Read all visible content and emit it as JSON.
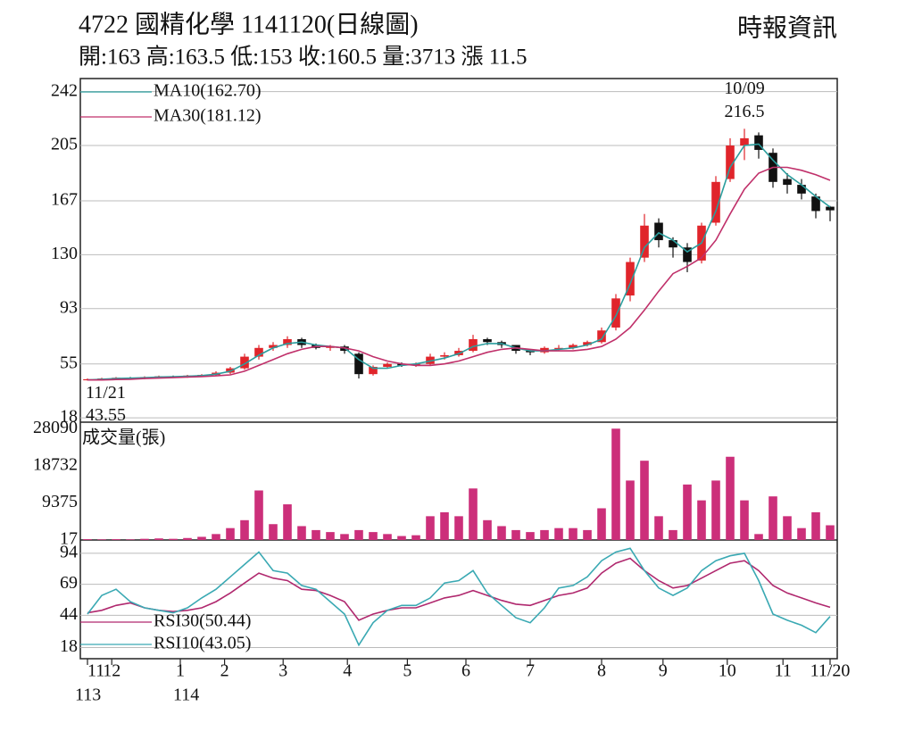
{
  "header": {
    "title": "4722  國精化學 1141120(日線圖)",
    "source": "時報資訊",
    "stats": "開:163 高:163.5 低:153 收:160.5 量:3713 漲 11.5"
  },
  "chart_data": [
    {
      "type": "candlestick",
      "x": [
        0,
        1,
        2,
        3,
        4,
        5,
        6,
        7,
        8,
        9,
        10,
        11,
        12,
        13,
        14,
        15,
        16,
        17,
        18,
        19,
        20,
        21,
        22,
        23,
        24,
        25,
        26,
        27,
        28,
        29,
        30,
        31,
        32,
        33,
        34,
        35,
        36,
        37,
        38,
        39,
        40,
        41,
        42,
        43,
        44,
        45,
        46,
        47,
        48,
        49,
        50,
        51,
        52
      ],
      "open": [
        44,
        44.5,
        45,
        45.5,
        45,
        46,
        46.5,
        46,
        47,
        47.5,
        49,
        52,
        60,
        66,
        68,
        72,
        68,
        66,
        67,
        62,
        48,
        53,
        55,
        54,
        55,
        60,
        61,
        64,
        72,
        70,
        68,
        64,
        63,
        66,
        66,
        68,
        70,
        80,
        102,
        128,
        152,
        140,
        135,
        126,
        152,
        182,
        205,
        212,
        200,
        182,
        178,
        170,
        163
      ],
      "high": [
        45,
        45.5,
        46,
        46,
        46.5,
        47,
        47,
        47.5,
        48,
        50,
        53,
        62,
        68,
        70,
        74,
        73,
        69,
        68,
        68,
        63,
        54,
        56,
        56,
        56,
        62,
        63,
        66,
        75,
        73,
        71,
        68,
        65,
        67,
        68,
        69,
        71,
        80,
        103,
        128,
        158,
        155,
        142,
        138,
        152,
        184,
        210,
        216.5,
        214,
        203,
        186,
        182,
        172,
        163.5
      ],
      "low": [
        43.55,
        44,
        44.5,
        44.5,
        44.5,
        45.5,
        45.5,
        45.5,
        46.5,
        47,
        48,
        51,
        58,
        64,
        66,
        66,
        65,
        64,
        62,
        45,
        47,
        52,
        53,
        53,
        54,
        58,
        60,
        63,
        68,
        66,
        62,
        61,
        62,
        64,
        65,
        67,
        69,
        78,
        98,
        125,
        135,
        128,
        118,
        124,
        150,
        180,
        195,
        196,
        176,
        172,
        168,
        155,
        153
      ],
      "close": [
        44.5,
        45,
        45.5,
        45,
        46,
        46.5,
        46,
        47,
        47.5,
        49,
        52,
        60,
        66,
        68,
        72,
        68,
        66,
        67,
        64,
        48,
        53,
        55,
        54,
        55,
        60,
        61,
        64,
        72,
        70,
        68,
        64,
        63,
        66,
        66,
        68,
        70,
        78,
        100,
        125,
        150,
        140,
        135,
        125,
        150,
        180,
        205,
        210,
        202,
        180,
        178,
        172,
        160,
        160.5
      ],
      "up_color": "#e0252b",
      "down_color": "#111111",
      "series": [
        {
          "name": "MA10(162.70)",
          "color": "#2a9d9d",
          "values": [
            44,
            44.5,
            45,
            45.2,
            45.5,
            46,
            46.2,
            46.5,
            47,
            48,
            50,
            55,
            61,
            66,
            69,
            70,
            68,
            67,
            66,
            58,
            52,
            52,
            54,
            55,
            57,
            59,
            62,
            67,
            69,
            69,
            66,
            64,
            64,
            65,
            66,
            68,
            72,
            88,
            110,
            135,
            145,
            140,
            132,
            138,
            160,
            190,
            205,
            206,
            195,
            185,
            178,
            170,
            162.7
          ]
        },
        {
          "name": "MA30(181.12)",
          "color": "#c0306a",
          "values": [
            44,
            44,
            44.3,
            44.5,
            45,
            45.3,
            45.6,
            46,
            46.3,
            46.8,
            47.5,
            50,
            54,
            58,
            62,
            65,
            67,
            67,
            66,
            64,
            60,
            57,
            55,
            54,
            54,
            55,
            57,
            60,
            63,
            65,
            66,
            65,
            64,
            64,
            64,
            65,
            67,
            72,
            80,
            92,
            105,
            117,
            122,
            128,
            140,
            158,
            175,
            186,
            190,
            190,
            188,
            185,
            181.12
          ]
        }
      ],
      "high_annotation": {
        "date": "10/09",
        "value": 216.5
      },
      "low_annotation": {
        "date": "11/21",
        "value": 43.55
      },
      "xlim": [
        -0.5,
        52.5
      ],
      "ylim": [
        15,
        251
      ],
      "yticks": [
        18,
        55,
        93,
        130,
        167,
        205,
        242
      ],
      "grid": true
    },
    {
      "type": "bar",
      "title": "成交量(張)",
      "color": "#cc2f7a",
      "x": [
        0,
        1,
        2,
        3,
        4,
        5,
        6,
        7,
        8,
        9,
        10,
        11,
        12,
        13,
        14,
        15,
        16,
        17,
        18,
        19,
        20,
        21,
        22,
        23,
        24,
        25,
        26,
        27,
        28,
        29,
        30,
        31,
        32,
        33,
        34,
        35,
        36,
        37,
        38,
        39,
        40,
        41,
        42,
        43,
        44,
        45,
        46,
        47,
        48,
        49,
        50,
        51,
        52
      ],
      "values": [
        200,
        150,
        200,
        150,
        300,
        400,
        300,
        500,
        800,
        1500,
        3000,
        5000,
        12500,
        4000,
        9000,
        3500,
        2500,
        2000,
        1500,
        2500,
        2000,
        1500,
        1000,
        1200,
        6000,
        7000,
        6000,
        13000,
        5000,
        3500,
        2500,
        2000,
        2500,
        3000,
        3000,
        2500,
        8000,
        28090,
        15000,
        20000,
        6000,
        2500,
        14000,
        10000,
        15000,
        21000,
        10000,
        1500,
        11000,
        6000,
        3000,
        7000,
        3713
      ],
      "xlim": [
        -0.5,
        52.5
      ],
      "ylim": [
        0,
        29500
      ],
      "yticks": [
        17,
        9375,
        18732,
        28090
      ],
      "grid": false
    },
    {
      "type": "line",
      "x": [
        0,
        1,
        2,
        3,
        4,
        5,
        6,
        7,
        8,
        9,
        10,
        11,
        12,
        13,
        14,
        15,
        16,
        17,
        18,
        19,
        20,
        21,
        22,
        23,
        24,
        25,
        26,
        27,
        28,
        29,
        30,
        31,
        32,
        33,
        34,
        35,
        36,
        37,
        38,
        39,
        40,
        41,
        42,
        43,
        44,
        45,
        46,
        47,
        48,
        49,
        50,
        51,
        52
      ],
      "series": [
        {
          "name": "RSI30(50.44)",
          "color": "#b0286e",
          "values": [
            46,
            48,
            52,
            54,
            50,
            48,
            47,
            48,
            50,
            55,
            62,
            70,
            78,
            74,
            72,
            65,
            64,
            60,
            55,
            40,
            45,
            48,
            50,
            50,
            54,
            58,
            60,
            64,
            60,
            56,
            53,
            52,
            56,
            60,
            62,
            66,
            78,
            86,
            90,
            80,
            72,
            66,
            68,
            74,
            80,
            86,
            88,
            80,
            68,
            62,
            58,
            54,
            50.44
          ]
        },
        {
          "name": "RSI10(43.05)",
          "color": "#3aa9b3",
          "values": [
            45,
            60,
            65,
            55,
            50,
            48,
            46,
            50,
            58,
            65,
            75,
            85,
            95,
            80,
            78,
            68,
            65,
            55,
            45,
            20,
            38,
            48,
            52,
            52,
            58,
            70,
            72,
            80,
            62,
            52,
            42,
            38,
            50,
            66,
            68,
            75,
            88,
            95,
            98,
            80,
            66,
            60,
            66,
            80,
            88,
            92,
            94,
            72,
            45,
            40,
            36,
            30,
            43.05
          ]
        }
      ],
      "xlim": [
        -0.5,
        52.5
      ],
      "ylim": [
        9,
        104
      ],
      "yticks": [
        18,
        44,
        69,
        94
      ],
      "grid": true,
      "xticks": [
        {
          "value": 0,
          "label": "11"
        },
        {
          "value": 1.7,
          "label": "12"
        },
        {
          "value": 6.5,
          "label": "1"
        },
        {
          "value": 9.6,
          "label": "2"
        },
        {
          "value": 13.7,
          "label": "3"
        },
        {
          "value": 18.2,
          "label": "4"
        },
        {
          "value": 22.4,
          "label": "5"
        },
        {
          "value": 26.5,
          "label": "6"
        },
        {
          "value": 31,
          "label": "7"
        },
        {
          "value": 36,
          "label": "8"
        },
        {
          "value": 40.3,
          "label": "9"
        },
        {
          "value": 44.8,
          "label": "10"
        },
        {
          "value": 48.7,
          "label": "11"
        },
        {
          "value": 52,
          "label": "11/20"
        }
      ],
      "year_labels": [
        {
          "value": 0,
          "label": "113"
        },
        {
          "value": 6.5,
          "label": "114"
        }
      ]
    }
  ]
}
